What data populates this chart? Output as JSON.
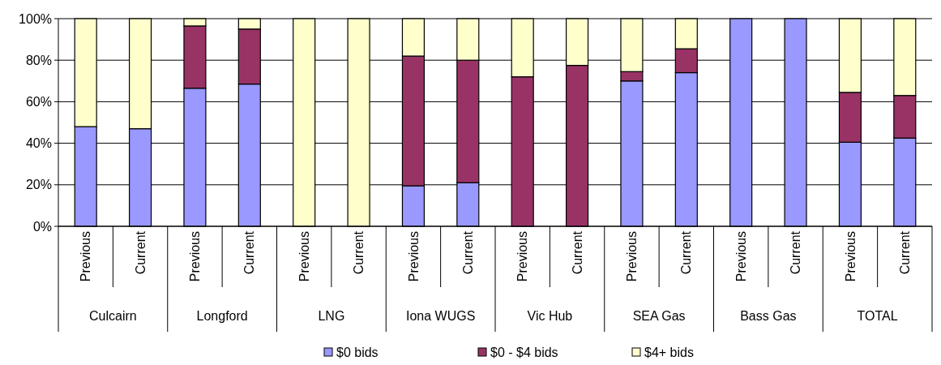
{
  "chart_data": {
    "type": "bar",
    "stacked": true,
    "categories": [
      "Previous",
      "Current",
      "Previous",
      "Current",
      "Previous",
      "Current",
      "Previous",
      "Current",
      "Previous",
      "Current",
      "Previous",
      "Current",
      "Previous",
      "Current",
      "Previous",
      "Current"
    ],
    "annotations": [
      "Culcairn",
      "Longford",
      "LNG",
      "Iona WUGS",
      "Vic Hub",
      "SEA Gas",
      "Bass Gas",
      "TOTAL"
    ],
    "series": [
      {
        "name": "$0 bids",
        "color": "#9999ff",
        "values": [
          48,
          47,
          66.5,
          68.5,
          0,
          0,
          19.5,
          21,
          0,
          0,
          70,
          74,
          100,
          100,
          40.5,
          42.5
        ]
      },
      {
        "name": "$0 - $4 bids",
        "color": "#993366",
        "values": [
          0,
          0,
          30,
          26.5,
          0,
          0,
          62.5,
          59,
          72,
          77.5,
          4.5,
          11.5,
          0,
          0,
          24,
          20.5
        ]
      },
      {
        "name": "$4+ bids",
        "color": "#ffffcc",
        "values": [
          52,
          53,
          3.5,
          5,
          100,
          100,
          18,
          20,
          28,
          22.5,
          25.5,
          14.5,
          0,
          0,
          35.5,
          37
        ]
      }
    ],
    "ylim": [
      0,
      100
    ],
    "yticks": [
      {
        "value": 0,
        "label": "0%"
      },
      {
        "value": 20,
        "label": "20%"
      },
      {
        "value": 40,
        "label": "40%"
      },
      {
        "value": 60,
        "label": "60%"
      },
      {
        "value": 80,
        "label": "80%"
      },
      {
        "value": 100,
        "label": "100%"
      }
    ],
    "grid": "y",
    "legend": "bottom"
  }
}
